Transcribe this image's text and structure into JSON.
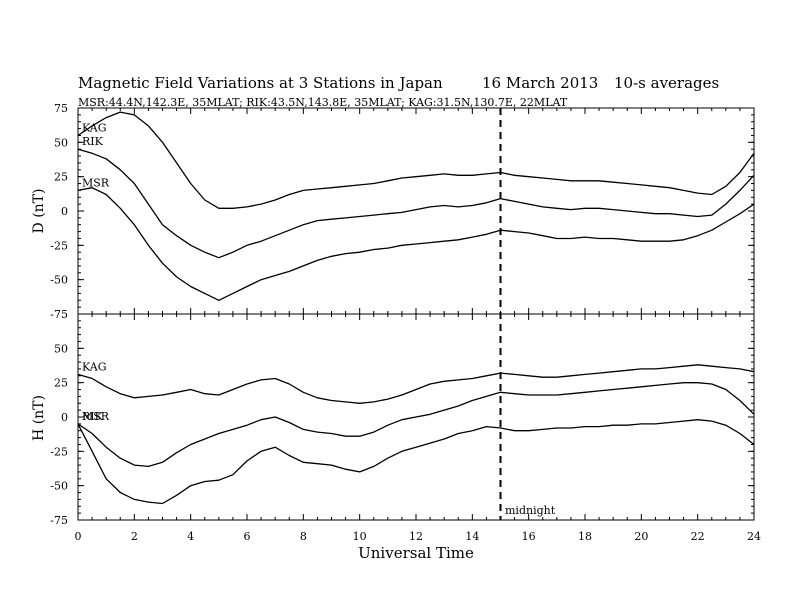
{
  "header": {
    "title": "Magnetic Field Variations at 3 Stations in Japan",
    "date": "16 March   2013",
    "averaging": "10-s averages",
    "stations_line": "MSR:44.4N,142.3E, 35MLAT;   RIK:43.5N,143.8E, 35MLAT;   KAG:31.5N,130.7E, 22MLAT"
  },
  "chart_data": [
    {
      "type": "line",
      "panel": "D",
      "ylabel": "D (nT)",
      "ylim": [
        -75,
        75
      ],
      "yticks": [
        "75",
        "50",
        "25",
        "0",
        "-25",
        "-50",
        "-75"
      ],
      "xlim": [
        0,
        24
      ],
      "series": [
        {
          "name": "KAG",
          "x": [
            0,
            0.5,
            1,
            1.5,
            2,
            2.5,
            3,
            3.5,
            4,
            4.5,
            5,
            5.5,
            6,
            6.5,
            7,
            7.5,
            8,
            8.5,
            9,
            9.5,
            10,
            10.5,
            11,
            11.5,
            12,
            12.5,
            13,
            13.5,
            14,
            14.5,
            15,
            15.5,
            16,
            16.5,
            17,
            17.5,
            18,
            18.5,
            19,
            19.5,
            20,
            20.5,
            21,
            21.5,
            22,
            22.5,
            23,
            23.5,
            24
          ],
          "values": [
            55,
            62,
            68,
            72,
            70,
            62,
            50,
            35,
            20,
            8,
            2,
            2,
            3,
            5,
            8,
            12,
            15,
            16,
            17,
            18,
            19,
            20,
            22,
            24,
            25,
            26,
            27,
            26,
            26,
            27,
            28,
            26,
            25,
            24,
            23,
            22,
            22,
            22,
            21,
            20,
            19,
            18,
            17,
            15,
            13,
            12,
            18,
            28,
            42
          ]
        },
        {
          "name": "RIK",
          "x": [
            0,
            0.5,
            1,
            1.5,
            2,
            2.5,
            3,
            3.5,
            4,
            4.5,
            5,
            5.5,
            6,
            6.5,
            7,
            7.5,
            8,
            8.5,
            9,
            9.5,
            10,
            10.5,
            11,
            11.5,
            12,
            12.5,
            13,
            13.5,
            14,
            14.5,
            15,
            15.5,
            16,
            16.5,
            17,
            17.5,
            18,
            18.5,
            19,
            19.5,
            20,
            20.5,
            21,
            21.5,
            22,
            22.5,
            23,
            23.5,
            24
          ],
          "values": [
            45,
            42,
            38,
            30,
            20,
            5,
            -10,
            -18,
            -25,
            -30,
            -34,
            -30,
            -25,
            -22,
            -18,
            -14,
            -10,
            -7,
            -6,
            -5,
            -4,
            -3,
            -2,
            -1,
            1,
            3,
            4,
            3,
            4,
            6,
            9,
            7,
            5,
            3,
            2,
            1,
            2,
            2,
            1,
            0,
            -1,
            -2,
            -2,
            -3,
            -4,
            -3,
            5,
            15,
            26
          ]
        },
        {
          "name": "MSR",
          "x": [
            0,
            0.5,
            1,
            1.5,
            2,
            2.5,
            3,
            3.5,
            4,
            4.5,
            5,
            5.5,
            6,
            6.5,
            7,
            7.5,
            8,
            8.5,
            9,
            9.5,
            10,
            10.5,
            11,
            11.5,
            12,
            12.5,
            13,
            13.5,
            14,
            14.5,
            15,
            15.5,
            16,
            16.5,
            17,
            17.5,
            18,
            18.5,
            19,
            19.5,
            20,
            20.5,
            21,
            21.5,
            22,
            22.5,
            23,
            23.5,
            24
          ],
          "values": [
            15,
            17,
            12,
            2,
            -10,
            -25,
            -38,
            -48,
            -55,
            -60,
            -65,
            -60,
            -55,
            -50,
            -47,
            -44,
            -40,
            -36,
            -33,
            -31,
            -30,
            -28,
            -27,
            -25,
            -24,
            -23,
            -22,
            -21,
            -19,
            -17,
            -14,
            -15,
            -16,
            -18,
            -20,
            -20,
            -19,
            -20,
            -20,
            -21,
            -22,
            -22,
            -22,
            -21,
            -18,
            -14,
            -8,
            -2,
            5
          ]
        }
      ]
    },
    {
      "type": "line",
      "panel": "H",
      "ylabel": "H (nT)",
      "ylim": [
        -75,
        75
      ],
      "yticks": [
        "50",
        "25",
        "0",
        "-25",
        "-50",
        "-75"
      ],
      "xlabel": "Universal Time",
      "xlim": [
        0,
        24
      ],
      "xticks": [
        "0",
        "2",
        "4",
        "6",
        "8",
        "10",
        "12",
        "14",
        "16",
        "18",
        "20",
        "22",
        "24"
      ],
      "series": [
        {
          "name": "KAG",
          "x": [
            0,
            0.5,
            1,
            1.5,
            2,
            2.5,
            3,
            3.5,
            4,
            4.5,
            5,
            5.5,
            6,
            6.5,
            7,
            7.5,
            8,
            8.5,
            9,
            9.5,
            10,
            10.5,
            11,
            11.5,
            12,
            12.5,
            13,
            13.5,
            14,
            14.5,
            15,
            15.5,
            16,
            16.5,
            17,
            17.5,
            18,
            18.5,
            19,
            19.5,
            20,
            20.5,
            21,
            21.5,
            22,
            22.5,
            23,
            23.5,
            24
          ],
          "values": [
            31,
            28,
            22,
            17,
            14,
            15,
            16,
            18,
            20,
            17,
            16,
            20,
            24,
            27,
            28,
            24,
            18,
            14,
            12,
            11,
            10,
            11,
            13,
            16,
            20,
            24,
            26,
            27,
            28,
            30,
            32,
            31,
            30,
            29,
            29,
            30,
            31,
            32,
            33,
            34,
            35,
            35,
            36,
            37,
            38,
            37,
            36,
            35,
            33
          ]
        },
        {
          "name": "RIK",
          "x": [
            0,
            0.5,
            1,
            1.5,
            2,
            2.5,
            3,
            3.5,
            4,
            4.5,
            5,
            5.5,
            6,
            6.5,
            7,
            7.5,
            8,
            8.5,
            9,
            9.5,
            10,
            10.5,
            11,
            11.5,
            12,
            12.5,
            13,
            13.5,
            14,
            14.5,
            15,
            15.5,
            16,
            16.5,
            17,
            17.5,
            18,
            18.5,
            19,
            19.5,
            20,
            20.5,
            21,
            21.5,
            22,
            22.5,
            23,
            23.5,
            24
          ],
          "values": [
            -5,
            -12,
            -22,
            -30,
            -35,
            -36,
            -33,
            -26,
            -20,
            -16,
            -12,
            -9,
            -6,
            -2,
            0,
            -4,
            -9,
            -11,
            -12,
            -14,
            -14,
            -11,
            -6,
            -2,
            0,
            2,
            5,
            8,
            12,
            15,
            18,
            17,
            16,
            16,
            16,
            17,
            18,
            19,
            20,
            21,
            22,
            23,
            24,
            25,
            25,
            24,
            20,
            12,
            2
          ]
        },
        {
          "name": "MSR",
          "x": [
            0,
            0.5,
            1,
            1.5,
            2,
            2.5,
            3,
            3.5,
            4,
            4.5,
            5,
            5.5,
            6,
            6.5,
            7,
            7.5,
            8,
            8.5,
            9,
            9.5,
            10,
            10.5,
            11,
            11.5,
            12,
            12.5,
            13,
            13.5,
            14,
            14.5,
            15,
            15.5,
            16,
            16.5,
            17,
            17.5,
            18,
            18.5,
            19,
            19.5,
            20,
            20.5,
            21,
            21.5,
            22,
            22.5,
            23,
            23.5,
            24
          ],
          "values": [
            -5,
            -25,
            -45,
            -55,
            -60,
            -62,
            -63,
            -57,
            -50,
            -47,
            -46,
            -42,
            -32,
            -25,
            -22,
            -28,
            -33,
            -34,
            -35,
            -38,
            -40,
            -36,
            -30,
            -25,
            -22,
            -19,
            -16,
            -12,
            -10,
            -7,
            -8,
            -10,
            -10,
            -9,
            -8,
            -8,
            -7,
            -7,
            -6,
            -6,
            -5,
            -5,
            -4,
            -3,
            -2,
            -3,
            -6,
            -12,
            -20
          ]
        }
      ]
    }
  ],
  "annotations": {
    "midnight_label": "midnight",
    "midnight_ut": 15
  }
}
